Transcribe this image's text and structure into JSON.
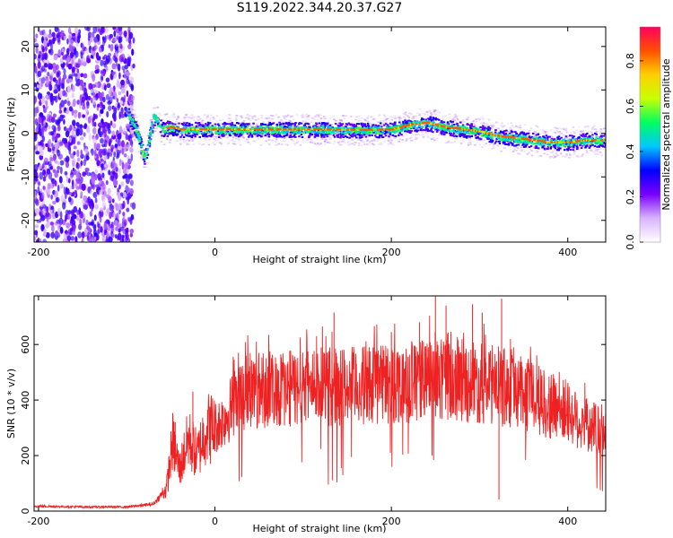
{
  "page": {
    "title": "S119.2022.344.20.37.G27"
  },
  "chart_data": [
    {
      "type": "heatmap",
      "title": "S119.2022.344.20.37.G27",
      "xlabel": "Height of straight line (km)",
      "ylabel": "Frequency (Hz)",
      "xlim": [
        -205,
        443
      ],
      "ylim": [
        -25,
        24.5
      ],
      "xticks": [
        -200,
        0,
        200,
        400
      ],
      "yticks": [
        -20,
        -10,
        0,
        10,
        20
      ],
      "colorbar": {
        "label": "Normalized spectral amplitude",
        "range": [
          0,
          0.95
        ],
        "ticks": [
          0.0,
          0.2,
          0.4,
          0.6,
          0.8
        ],
        "colormap": [
          "#ffffff",
          "#d9b3ff",
          "#7a00ff",
          "#0000ff",
          "#00c8ff",
          "#00ff60",
          "#c8ff00",
          "#ffd000",
          "#ff5000",
          "#ff0060"
        ]
      },
      "noise_band_x": [
        -205,
        -100
      ],
      "dominant_frequency_track": {
        "x": [
          -100,
          -90,
          -80,
          -70,
          -60,
          -50,
          -40,
          -20,
          0,
          40,
          80,
          120,
          160,
          200,
          220,
          240,
          260,
          280,
          300,
          320,
          340,
          360,
          380,
          400,
          420,
          443
        ],
        "y": [
          5,
          1,
          -6,
          4,
          1,
          1.5,
          1,
          1,
          1,
          1,
          1,
          1,
          0.8,
          1,
          2,
          2.5,
          1.5,
          1,
          0.5,
          -0.5,
          -1,
          -1.5,
          -2,
          -2,
          -1.5,
          -1.5
        ]
      }
    },
    {
      "type": "line",
      "xlabel": "Height of straight line (km)",
      "ylabel": "SNR (10 * v/v)",
      "xlim": [
        -205,
        443
      ],
      "ylim": [
        0,
        775
      ],
      "xticks": [
        -200,
        0,
        200,
        400
      ],
      "yticks": [
        0,
        200,
        400,
        600
      ],
      "line_color": "#ee2222",
      "envelope": {
        "x": [
          -205,
          -150,
          -100,
          -70,
          -55,
          -48,
          -40,
          -30,
          -20,
          -10,
          0,
          10,
          20,
          30,
          50,
          80,
          120,
          160,
          200,
          240,
          280,
          320,
          340,
          360,
          380,
          400,
          410,
          420,
          430,
          443
        ],
        "y": [
          18,
          15,
          15,
          25,
          80,
          250,
          150,
          260,
          200,
          300,
          300,
          330,
          380,
          420,
          440,
          440,
          450,
          450,
          460,
          470,
          470,
          450,
          440,
          410,
          380,
          360,
          330,
          310,
          300,
          290
        ]
      },
      "spikes": {
        "x": [
          -45,
          -25,
          35,
          135,
          175,
          200,
          232,
          250,
          262,
          292,
          303,
          322,
          325
        ],
        "y": [
          320,
          430,
          500,
          715,
          590,
          645,
          680,
          775,
          740,
          745,
          715,
          42,
          765
        ]
      }
    }
  ]
}
